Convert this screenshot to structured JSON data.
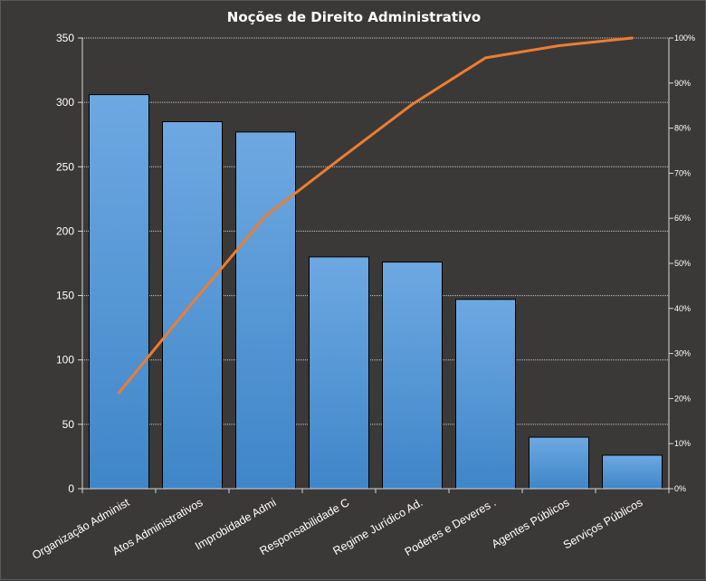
{
  "chart_data": {
    "type": "bar",
    "title": "Noções de Direito  Administrativo",
    "categories": [
      "Organização Administ",
      "Atos Administrativos",
      "Improbidade  Admi",
      "Responsabilidade C",
      "Regime Jurídico Ad.",
      "Poderes e Deveres  .",
      "Agentes Públicos",
      "Serviços Públicos"
    ],
    "series": [
      {
        "type": "bar",
        "axis": "left",
        "values": [
          306,
          285,
          277,
          180,
          176,
          147,
          40,
          26
        ],
        "color": "#5a9bdc"
      },
      {
        "type": "line",
        "axis": "right",
        "values": [
          21.3,
          41.2,
          60.5,
          73.0,
          85.3,
          95.6,
          98.3,
          100
        ],
        "color": "#ed7d31"
      }
    ],
    "ylim": [
      0,
      350
    ],
    "yticks": [
      0,
      50,
      100,
      150,
      200,
      250,
      300,
      350
    ],
    "y2lim": [
      0,
      100
    ],
    "y2ticks": [
      "0%",
      "10%",
      "20%",
      "30%",
      "40%",
      "50%",
      "60%",
      "70%",
      "80%",
      "90%",
      "100%"
    ],
    "grid": true,
    "legend": "none"
  }
}
